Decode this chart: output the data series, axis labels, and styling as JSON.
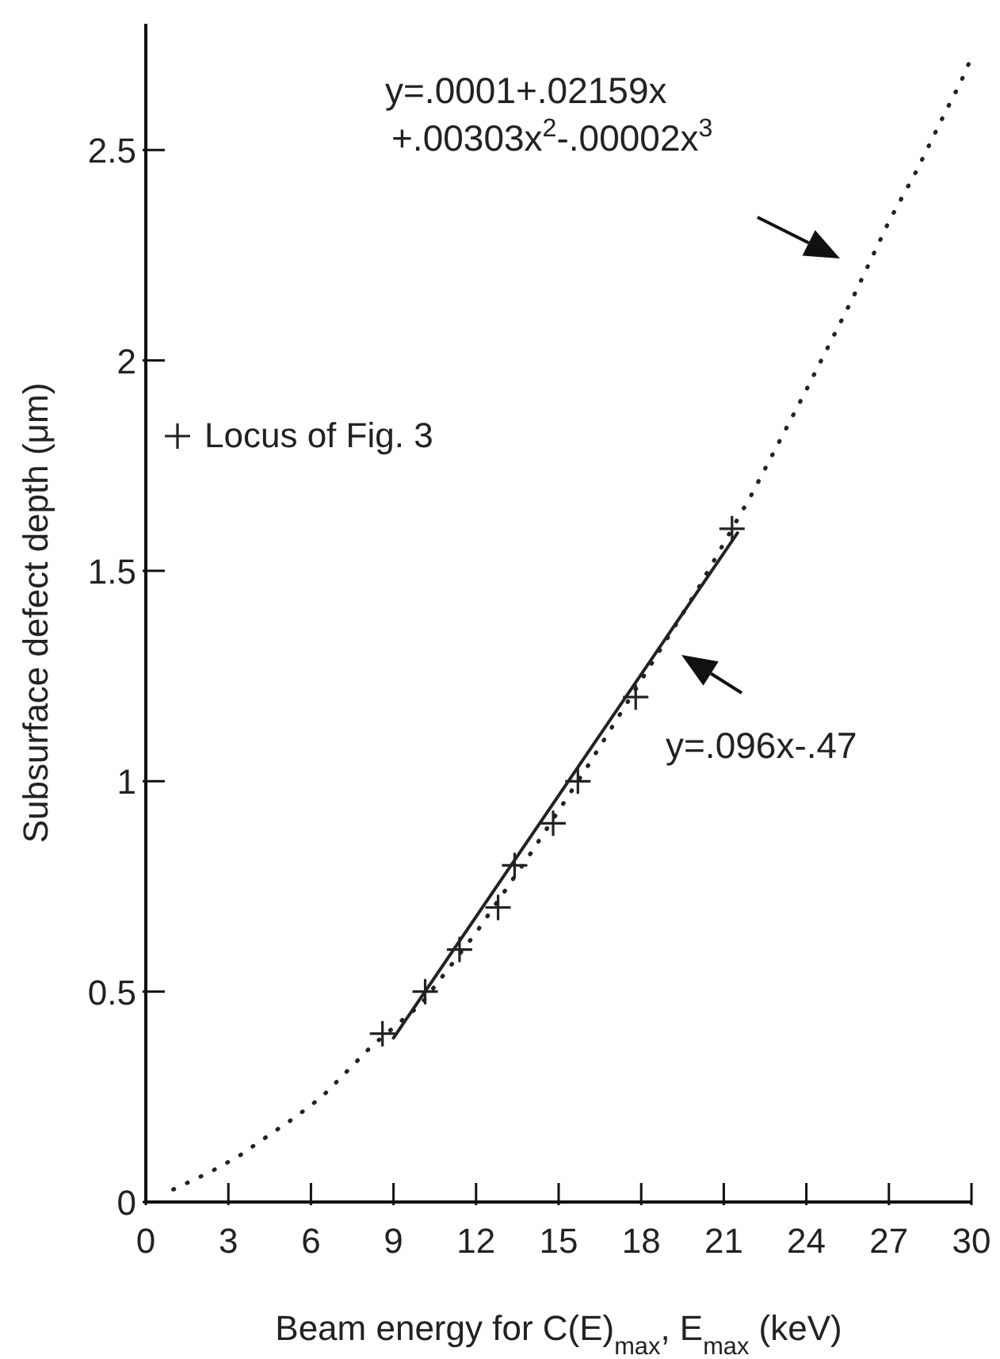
{
  "chart_data": {
    "type": "scatter",
    "xlabel": "Beam energy for C(E)$_{max}$, E$_{max}$ (keV)",
    "ylabel": "Subsurface defect depth (μm)",
    "xlim": [
      0,
      30
    ],
    "ylim": [
      0,
      2.8
    ],
    "xticks": [
      0,
      3,
      6,
      9,
      12,
      15,
      18,
      21,
      24,
      27,
      30
    ],
    "yticks": [
      0,
      0.5,
      1,
      1.5,
      2,
      2.5
    ],
    "grid": false,
    "legend": "left",
    "annotations": [
      "y=.0001+.02159x\n+.00303x$^{2}$-.00002x$^{3}$",
      "y=.096x-.47"
    ],
    "series": [
      {
        "name": "Locus of Fig. 3",
        "marker": "cross",
        "color": "#222222",
        "x": [
          8.6,
          10.15,
          11.4,
          12.8,
          13.4,
          14.8,
          15.7,
          17.8,
          21.3
        ],
        "values": [
          0.4,
          0.5,
          0.6,
          0.7,
          0.8,
          0.9,
          1.0,
          1.2,
          1.6
        ]
      },
      {
        "type": "line",
        "line_style": "solid",
        "marker": "none",
        "color": "#222222",
        "x": [
          9,
          21.5
        ],
        "values": [
          0.39,
          1.59
        ]
      },
      {
        "type": "line",
        "line_style": "dotted",
        "marker": "none",
        "color": "#222222",
        "x": [
          1,
          2.3,
          3.4,
          4.5,
          5.4,
          6.4,
          7.3,
          8.2,
          10,
          12,
          14,
          16,
          18,
          20,
          22,
          24,
          25.7,
          27,
          28,
          29.05,
          29.6,
          30
        ],
        "values": [
          0.03,
          0.07,
          0.11,
          0.16,
          0.2,
          0.25,
          0.31,
          0.37,
          0.47,
          0.64,
          0.83,
          1.03,
          1.24,
          1.45,
          1.68,
          1.93,
          2.15,
          2.33,
          2.45,
          2.59,
          2.66,
          2.72
        ]
      }
    ]
  }
}
